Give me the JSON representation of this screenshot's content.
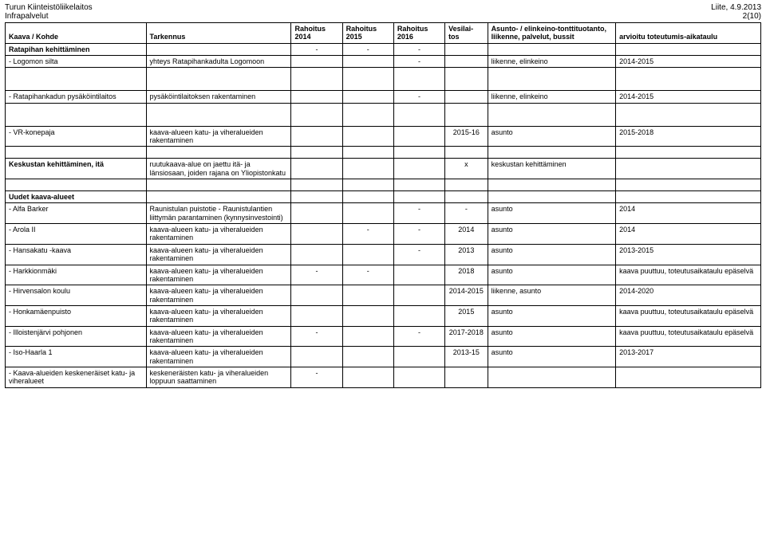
{
  "header": {
    "org1": "Turun Kiinteistöliikelaitos",
    "org2": "Infrapalvelut",
    "right1": "Liite, 4.9.2013",
    "right2": "2(10)"
  },
  "columns": {
    "c0": "Kaava / Kohde",
    "c1": "Tarkennus",
    "c2": "Rahoitus 2014",
    "c3": "Rahoitus 2015",
    "c4": "Rahoitus 2016",
    "c5": "Vesilai-tos",
    "c6": "Asunto- / elinkeino-tonttituotanto, liikenne, palvelut, bussit",
    "c7": "arvioitu toteutumis-aikataulu"
  },
  "widths": {
    "c0": 165,
    "c1": 170,
    "c2": 60,
    "c3": 60,
    "c4": 60,
    "c5": 50,
    "c6": 150,
    "c7": 170
  },
  "rows": {
    "r0": {
      "bold": true,
      "c0": "Ratapihan kehittäminen",
      "c1": "",
      "c2": "-",
      "c3": "-",
      "c4": "-",
      "c5": "",
      "c6": "",
      "c7": ""
    },
    "r1": {
      "bold": false,
      "c0": "- Logomon silta",
      "c1": "yhteys Ratapihankadulta Logomoon",
      "c2": "",
      "c3": "",
      "c4": "-",
      "c5": "",
      "c6": "liikenne, elinkeino",
      "c7": "2014-2015"
    },
    "r2": {
      "bold": false,
      "c0": "- Ratapihankadun pysäköintilaitos",
      "c1": "pysäköintilaitoksen rakentaminen",
      "c2": "",
      "c3": "",
      "c4": "-",
      "c5": "",
      "c6": "liikenne, elinkeino",
      "c7": "2014-2015"
    },
    "r3": {
      "bold": false,
      "c0": "- VR-konepaja",
      "c1": "kaava-alueen katu- ja viheralueiden rakentaminen",
      "c2": "",
      "c3": "",
      "c4": "",
      "c5": "2015-16",
      "c6": "asunto",
      "c7": "2015-2018"
    },
    "r4": {
      "bold": true,
      "c0": "Keskustan kehittäminen, itä",
      "c1": "ruutukaava-alue on jaettu itä- ja länsiosaan, joiden rajana on Yliopistonkatu",
      "c2": "",
      "c3": "",
      "c4": "",
      "c5": "x",
      "c6": "keskustan kehittäminen",
      "c7": ""
    },
    "r5": {
      "bold": true,
      "c0": "Uudet kaava-alueet",
      "c1": "",
      "c2": "",
      "c3": "",
      "c4": "",
      "c5": "",
      "c6": "",
      "c7": ""
    },
    "r6": {
      "bold": false,
      "c0": "- Alfa Barker",
      "c1": "Raunistulan puistotie - Raunistulantien liittymän parantaminen (kynnysinvestointi)",
      "c2": "",
      "c3": "",
      "c4": "-",
      "c5": "-",
      "c6": "asunto",
      "c7": "2014"
    },
    "r7": {
      "bold": false,
      "c0": "- Arola II",
      "c1": "kaava-alueen katu- ja viheralueiden rakentaminen",
      "c2": "",
      "c3": "-",
      "c4": "-",
      "c5": "2014",
      "c6": "asunto",
      "c7": "2014"
    },
    "r8": {
      "bold": false,
      "c0": "- Hansakatu -kaava",
      "c1": "kaava-alueen katu- ja viheralueiden rakentaminen",
      "c2": "",
      "c3": "",
      "c4": "-",
      "c5": "2013",
      "c6": "asunto",
      "c7": "2013-2015"
    },
    "r9": {
      "bold": false,
      "c0": "- Harkkionmäki",
      "c1": "kaava-alueen katu- ja viheralueiden rakentaminen",
      "c2": "-",
      "c3": "-",
      "c4": "",
      "c5": "2018",
      "c6": "asunto",
      "c7": "kaava puuttuu, toteutusaikataulu epäselvä"
    },
    "r10": {
      "bold": false,
      "c0": "- Hirvensalon koulu",
      "c1": "kaava-alueen katu- ja viheralueiden rakentaminen",
      "c2": "",
      "c3": "",
      "c4": "",
      "c5": "2014-2015",
      "c6": "liikenne, asunto",
      "c7": "2014-2020"
    },
    "r11": {
      "bold": false,
      "c0": "- Honkamäenpuisto",
      "c1": "kaava-alueen katu- ja viheralueiden rakentaminen",
      "c2": "",
      "c3": "",
      "c4": "",
      "c5": "2015",
      "c6": "asunto",
      "c7": "kaava puuttuu, toteutusaikataulu epäselvä"
    },
    "r12": {
      "bold": false,
      "c0": "- Illoistenjärvi pohjonen",
      "c1": "kaava-alueen katu- ja viheralueiden rakentaminen",
      "c2": "-",
      "c3": "",
      "c4": "-",
      "c5": "2017-2018",
      "c6": "asunto",
      "c7": "kaava puuttuu, toteutusaikataulu epäselvä"
    },
    "r13": {
      "bold": false,
      "c0": "- Iso-Haarla 1",
      "c1": "kaava-alueen katu- ja viheralueiden rakentaminen",
      "c2": "",
      "c3": "",
      "c4": "",
      "c5": "2013-15",
      "c6": "asunto",
      "c7": "2013-2017"
    },
    "r14": {
      "bold": false,
      "c0": "- Kaava-alueiden keskeneräiset katu- ja viheralueet",
      "c1": "keskeneräisten katu- ja viheralueiden loppuun saattaminen",
      "c2": "-",
      "c3": "",
      "c4": "",
      "c5": "",
      "c6": "",
      "c7": ""
    }
  }
}
